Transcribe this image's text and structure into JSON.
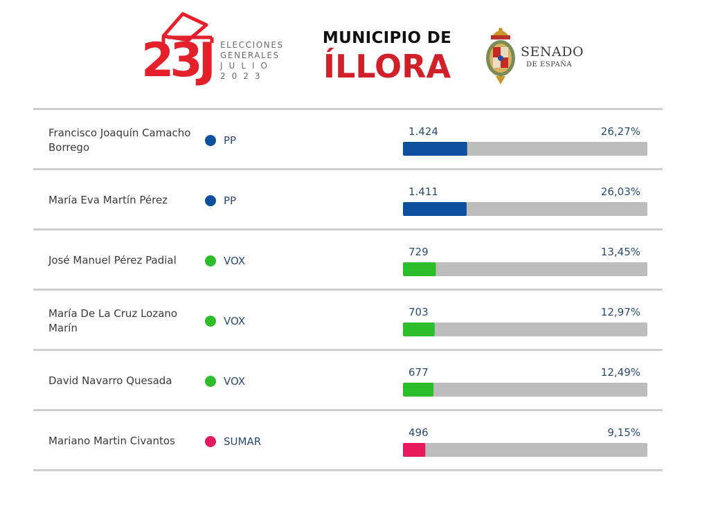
{
  "header": {
    "logo_23j": {
      "big": "23J",
      "line1": "ELECCIONES",
      "line2": "GENERALES",
      "line3": "JULIO",
      "line4": "2023",
      "color": "#e4212b",
      "icon": "ballot-box-icon"
    },
    "municipio": {
      "line1": "MUNICIPIO DE",
      "line2": "ÍLLORA"
    },
    "senado": {
      "title": "SENADO",
      "subtitle": "DE ESPAÑA",
      "icon": "senado-coat-of-arms-icon"
    }
  },
  "colors": {
    "PP": "#0c4f9c",
    "VOX": "#2ebd2a",
    "SUMAR": "#e6195a",
    "track": "#bdbdbd"
  },
  "chart_data": {
    "type": "bar",
    "orientation": "horizontal",
    "xlim": [
      0,
      100
    ],
    "rows": [
      {
        "candidate": "Francisco Joaquín Camacho Borrego",
        "party": "PP",
        "votes": "1.424",
        "percent_label": "26,27%",
        "percent": 26.27
      },
      {
        "candidate": "María Eva Martín Pérez",
        "party": "PP",
        "votes": "1.411",
        "percent_label": "26,03%",
        "percent": 26.03
      },
      {
        "candidate": "José Manuel Pérez Padial",
        "party": "VOX",
        "votes": "729",
        "percent_label": "13,45%",
        "percent": 13.45
      },
      {
        "candidate": "María De La Cruz Lozano Marín",
        "party": "VOX",
        "votes": "703",
        "percent_label": "12,97%",
        "percent": 12.97
      },
      {
        "candidate": "David Navarro Quesada",
        "party": "VOX",
        "votes": "677",
        "percent_label": "12,49%",
        "percent": 12.49
      },
      {
        "candidate": "Mariano Martin Civantos",
        "party": "SUMAR",
        "votes": "496",
        "percent_label": "9,15%",
        "percent": 9.15
      }
    ]
  }
}
